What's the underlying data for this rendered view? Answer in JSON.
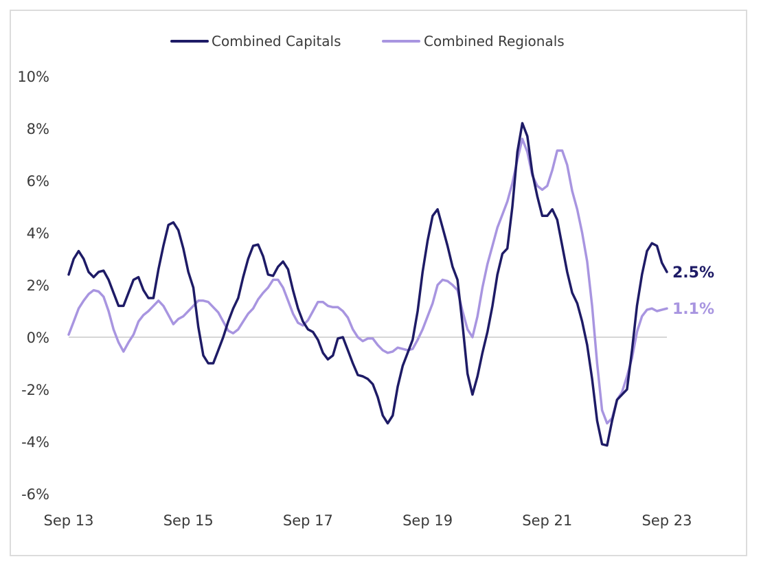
{
  "chart_data": {
    "type": "line",
    "title": "",
    "xlabel": "",
    "ylabel": "",
    "ylim": [
      -6,
      10
    ],
    "y_ticks": [
      {
        "value": 10,
        "label": "10%"
      },
      {
        "value": 8,
        "label": "8%"
      },
      {
        "value": 6,
        "label": "6%"
      },
      {
        "value": 4,
        "label": "4%"
      },
      {
        "value": 2,
        "label": "2%"
      },
      {
        "value": 0,
        "label": "0%"
      },
      {
        "value": -2,
        "label": "-2%"
      },
      {
        "value": -4,
        "label": "-4%"
      },
      {
        "value": -6,
        "label": "-6%"
      }
    ],
    "x_ticks": [
      {
        "x": "2013-09",
        "label": "Sep 13"
      },
      {
        "x": "2015-09",
        "label": "Sep 15"
      },
      {
        "x": "2017-09",
        "label": "Sep 17"
      },
      {
        "x": "2019-09",
        "label": "Sep 19"
      },
      {
        "x": "2021-09",
        "label": "Sep 21"
      },
      {
        "x": "2023-09",
        "label": "Sep 23"
      }
    ],
    "xlim": [
      "2013-09",
      "2023-09"
    ],
    "zero_line": true,
    "grid": false,
    "legend": "top",
    "series": [
      {
        "name": "Combined Capitals",
        "color": "#1e1b66",
        "end_label": "2.5%",
        "points": [
          [
            "2013-09",
            2.4
          ],
          [
            "2013-10",
            3.0
          ],
          [
            "2013-11",
            3.3
          ],
          [
            "2013-12",
            3.0
          ],
          [
            "2014-01",
            2.5
          ],
          [
            "2014-02",
            2.3
          ],
          [
            "2014-03",
            2.5
          ],
          [
            "2014-04",
            2.55
          ],
          [
            "2014-05",
            2.2
          ],
          [
            "2014-06",
            1.7
          ],
          [
            "2014-07",
            1.2
          ],
          [
            "2014-08",
            1.2
          ],
          [
            "2014-09",
            1.7
          ],
          [
            "2014-10",
            2.2
          ],
          [
            "2014-11",
            2.3
          ],
          [
            "2014-12",
            1.8
          ],
          [
            "2015-01",
            1.5
          ],
          [
            "2015-02",
            1.5
          ],
          [
            "2015-03",
            2.6
          ],
          [
            "2015-04",
            3.5
          ],
          [
            "2015-05",
            4.3
          ],
          [
            "2015-06",
            4.4
          ],
          [
            "2015-07",
            4.1
          ],
          [
            "2015-08",
            3.4
          ],
          [
            "2015-09",
            2.5
          ],
          [
            "2015-10",
            1.9
          ],
          [
            "2015-11",
            0.4
          ],
          [
            "2015-12",
            -0.7
          ],
          [
            "2016-01",
            -1.0
          ],
          [
            "2016-02",
            -1.0
          ],
          [
            "2016-03",
            -0.5
          ],
          [
            "2016-04",
            0.0
          ],
          [
            "2016-05",
            0.6
          ],
          [
            "2016-06",
            1.1
          ],
          [
            "2016-07",
            1.5
          ],
          [
            "2016-08",
            2.3
          ],
          [
            "2016-09",
            3.0
          ],
          [
            "2016-10",
            3.5
          ],
          [
            "2016-11",
            3.55
          ],
          [
            "2016-12",
            3.1
          ],
          [
            "2017-01",
            2.4
          ],
          [
            "2017-02",
            2.35
          ],
          [
            "2017-03",
            2.7
          ],
          [
            "2017-04",
            2.9
          ],
          [
            "2017-05",
            2.6
          ],
          [
            "2017-06",
            1.8
          ],
          [
            "2017-07",
            1.1
          ],
          [
            "2017-08",
            0.6
          ],
          [
            "2017-09",
            0.3
          ],
          [
            "2017-10",
            0.2
          ],
          [
            "2017-11",
            -0.1
          ],
          [
            "2017-12",
            -0.6
          ],
          [
            "2018-01",
            -0.85
          ],
          [
            "2018-02",
            -0.7
          ],
          [
            "2018-03",
            -0.05
          ],
          [
            "2018-04",
            0.0
          ],
          [
            "2018-05",
            -0.5
          ],
          [
            "2018-06",
            -1.0
          ],
          [
            "2018-07",
            -1.45
          ],
          [
            "2018-08",
            -1.5
          ],
          [
            "2018-09",
            -1.6
          ],
          [
            "2018-10",
            -1.8
          ],
          [
            "2018-11",
            -2.3
          ],
          [
            "2018-12",
            -3.0
          ],
          [
            "2019-01",
            -3.3
          ],
          [
            "2019-02",
            -3.0
          ],
          [
            "2019-03",
            -1.9
          ],
          [
            "2019-04",
            -1.1
          ],
          [
            "2019-05",
            -0.6
          ],
          [
            "2019-06",
            -0.1
          ],
          [
            "2019-07",
            1.0
          ],
          [
            "2019-08",
            2.5
          ],
          [
            "2019-09",
            3.7
          ],
          [
            "2019-10",
            4.65
          ],
          [
            "2019-11",
            4.9
          ],
          [
            "2019-12",
            4.2
          ],
          [
            "2020-01",
            3.5
          ],
          [
            "2020-02",
            2.7
          ],
          [
            "2020-03",
            2.2
          ],
          [
            "2020-04",
            0.5
          ],
          [
            "2020-05",
            -1.4
          ],
          [
            "2020-06",
            -2.2
          ],
          [
            "2020-07",
            -1.5
          ],
          [
            "2020-08",
            -0.6
          ],
          [
            "2020-09",
            0.2
          ],
          [
            "2020-10",
            1.2
          ],
          [
            "2020-11",
            2.4
          ],
          [
            "2020-12",
            3.2
          ],
          [
            "2021-01",
            3.4
          ],
          [
            "2021-02",
            5.0
          ],
          [
            "2021-03",
            7.1
          ],
          [
            "2021-04",
            8.2
          ],
          [
            "2021-05",
            7.7
          ],
          [
            "2021-06",
            6.3
          ],
          [
            "2021-07",
            5.4
          ],
          [
            "2021-08",
            4.65
          ],
          [
            "2021-09",
            4.65
          ],
          [
            "2021-10",
            4.9
          ],
          [
            "2021-11",
            4.5
          ],
          [
            "2021-12",
            3.5
          ],
          [
            "2022-01",
            2.5
          ],
          [
            "2022-02",
            1.7
          ],
          [
            "2022-03",
            1.3
          ],
          [
            "2022-04",
            0.6
          ],
          [
            "2022-05",
            -0.3
          ],
          [
            "2022-06",
            -1.6
          ],
          [
            "2022-07",
            -3.2
          ],
          [
            "2022-08",
            -4.1
          ],
          [
            "2022-09",
            -4.15
          ],
          [
            "2022-10",
            -3.2
          ],
          [
            "2022-11",
            -2.4
          ],
          [
            "2022-12",
            -2.2
          ],
          [
            "2023-01",
            -2.0
          ],
          [
            "2023-02",
            -0.5
          ],
          [
            "2023-03",
            1.2
          ],
          [
            "2023-04",
            2.4
          ],
          [
            "2023-05",
            3.3
          ],
          [
            "2023-06",
            3.6
          ],
          [
            "2023-07",
            3.5
          ],
          [
            "2023-08",
            2.85
          ],
          [
            "2023-09",
            2.5
          ]
        ]
      },
      {
        "name": "Combined Regionals",
        "color": "#a895e0",
        "end_label": "1.1%",
        "points": [
          [
            "2013-09",
            0.1
          ],
          [
            "2013-10",
            0.6
          ],
          [
            "2013-11",
            1.1
          ],
          [
            "2013-12",
            1.4
          ],
          [
            "2014-01",
            1.65
          ],
          [
            "2014-02",
            1.8
          ],
          [
            "2014-03",
            1.75
          ],
          [
            "2014-04",
            1.55
          ],
          [
            "2014-05",
            1.0
          ],
          [
            "2014-06",
            0.3
          ],
          [
            "2014-07",
            -0.2
          ],
          [
            "2014-08",
            -0.55
          ],
          [
            "2014-09",
            -0.2
          ],
          [
            "2014-10",
            0.1
          ],
          [
            "2014-11",
            0.6
          ],
          [
            "2014-12",
            0.85
          ],
          [
            "2015-01",
            1.0
          ],
          [
            "2015-02",
            1.2
          ],
          [
            "2015-03",
            1.4
          ],
          [
            "2015-04",
            1.2
          ],
          [
            "2015-05",
            0.85
          ],
          [
            "2015-06",
            0.5
          ],
          [
            "2015-07",
            0.7
          ],
          [
            "2015-08",
            0.8
          ],
          [
            "2015-09",
            1.0
          ],
          [
            "2015-10",
            1.2
          ],
          [
            "2015-11",
            1.4
          ],
          [
            "2015-12",
            1.4
          ],
          [
            "2016-01",
            1.35
          ],
          [
            "2016-02",
            1.15
          ],
          [
            "2016-03",
            0.95
          ],
          [
            "2016-04",
            0.6
          ],
          [
            "2016-05",
            0.25
          ],
          [
            "2016-06",
            0.15
          ],
          [
            "2016-07",
            0.3
          ],
          [
            "2016-08",
            0.6
          ],
          [
            "2016-09",
            0.9
          ],
          [
            "2016-10",
            1.1
          ],
          [
            "2016-11",
            1.45
          ],
          [
            "2016-12",
            1.7
          ],
          [
            "2017-01",
            1.9
          ],
          [
            "2017-02",
            2.2
          ],
          [
            "2017-03",
            2.2
          ],
          [
            "2017-04",
            1.9
          ],
          [
            "2017-05",
            1.4
          ],
          [
            "2017-06",
            0.9
          ],
          [
            "2017-07",
            0.55
          ],
          [
            "2017-08",
            0.45
          ],
          [
            "2017-09",
            0.65
          ],
          [
            "2017-10",
            1.0
          ],
          [
            "2017-11",
            1.35
          ],
          [
            "2017-12",
            1.35
          ],
          [
            "2018-01",
            1.2
          ],
          [
            "2018-02",
            1.15
          ],
          [
            "2018-03",
            1.15
          ],
          [
            "2018-04",
            1.0
          ],
          [
            "2018-05",
            0.75
          ],
          [
            "2018-06",
            0.3
          ],
          [
            "2018-07",
            0.0
          ],
          [
            "2018-08",
            -0.15
          ],
          [
            "2018-09",
            -0.05
          ],
          [
            "2018-10",
            -0.05
          ],
          [
            "2018-11",
            -0.3
          ],
          [
            "2018-12",
            -0.5
          ],
          [
            "2019-01",
            -0.6
          ],
          [
            "2019-02",
            -0.55
          ],
          [
            "2019-03",
            -0.4
          ],
          [
            "2019-04",
            -0.45
          ],
          [
            "2019-05",
            -0.5
          ],
          [
            "2019-06",
            -0.45
          ],
          [
            "2019-07",
            -0.1
          ],
          [
            "2019-08",
            0.3
          ],
          [
            "2019-09",
            0.8
          ],
          [
            "2019-10",
            1.3
          ],
          [
            "2019-11",
            2.0
          ],
          [
            "2019-12",
            2.2
          ],
          [
            "2020-01",
            2.15
          ],
          [
            "2020-02",
            2.0
          ],
          [
            "2020-03",
            1.8
          ],
          [
            "2020-04",
            1.0
          ],
          [
            "2020-05",
            0.3
          ],
          [
            "2020-06",
            0.0
          ],
          [
            "2020-07",
            0.8
          ],
          [
            "2020-08",
            1.9
          ],
          [
            "2020-09",
            2.8
          ],
          [
            "2020-10",
            3.5
          ],
          [
            "2020-11",
            4.2
          ],
          [
            "2020-12",
            4.7
          ],
          [
            "2021-01",
            5.2
          ],
          [
            "2021-02",
            5.9
          ],
          [
            "2021-03",
            6.8
          ],
          [
            "2021-04",
            7.6
          ],
          [
            "2021-05",
            7.1
          ],
          [
            "2021-06",
            6.2
          ],
          [
            "2021-07",
            5.8
          ],
          [
            "2021-08",
            5.65
          ],
          [
            "2021-09",
            5.8
          ],
          [
            "2021-10",
            6.4
          ],
          [
            "2021-11",
            7.15
          ],
          [
            "2021-12",
            7.15
          ],
          [
            "2022-01",
            6.6
          ],
          [
            "2022-02",
            5.6
          ],
          [
            "2022-03",
            4.9
          ],
          [
            "2022-04",
            4.0
          ],
          [
            "2022-05",
            2.9
          ],
          [
            "2022-06",
            1.2
          ],
          [
            "2022-07",
            -1.0
          ],
          [
            "2022-08",
            -2.8
          ],
          [
            "2022-09",
            -3.3
          ],
          [
            "2022-10",
            -3.1
          ],
          [
            "2022-11",
            -2.4
          ],
          [
            "2022-12",
            -2.1
          ],
          [
            "2023-01",
            -1.5
          ],
          [
            "2023-02",
            -0.8
          ],
          [
            "2023-03",
            0.2
          ],
          [
            "2023-04",
            0.8
          ],
          [
            "2023-05",
            1.05
          ],
          [
            "2023-06",
            1.1
          ],
          [
            "2023-07",
            1.0
          ],
          [
            "2023-08",
            1.05
          ],
          [
            "2023-09",
            1.1
          ]
        ]
      }
    ]
  }
}
